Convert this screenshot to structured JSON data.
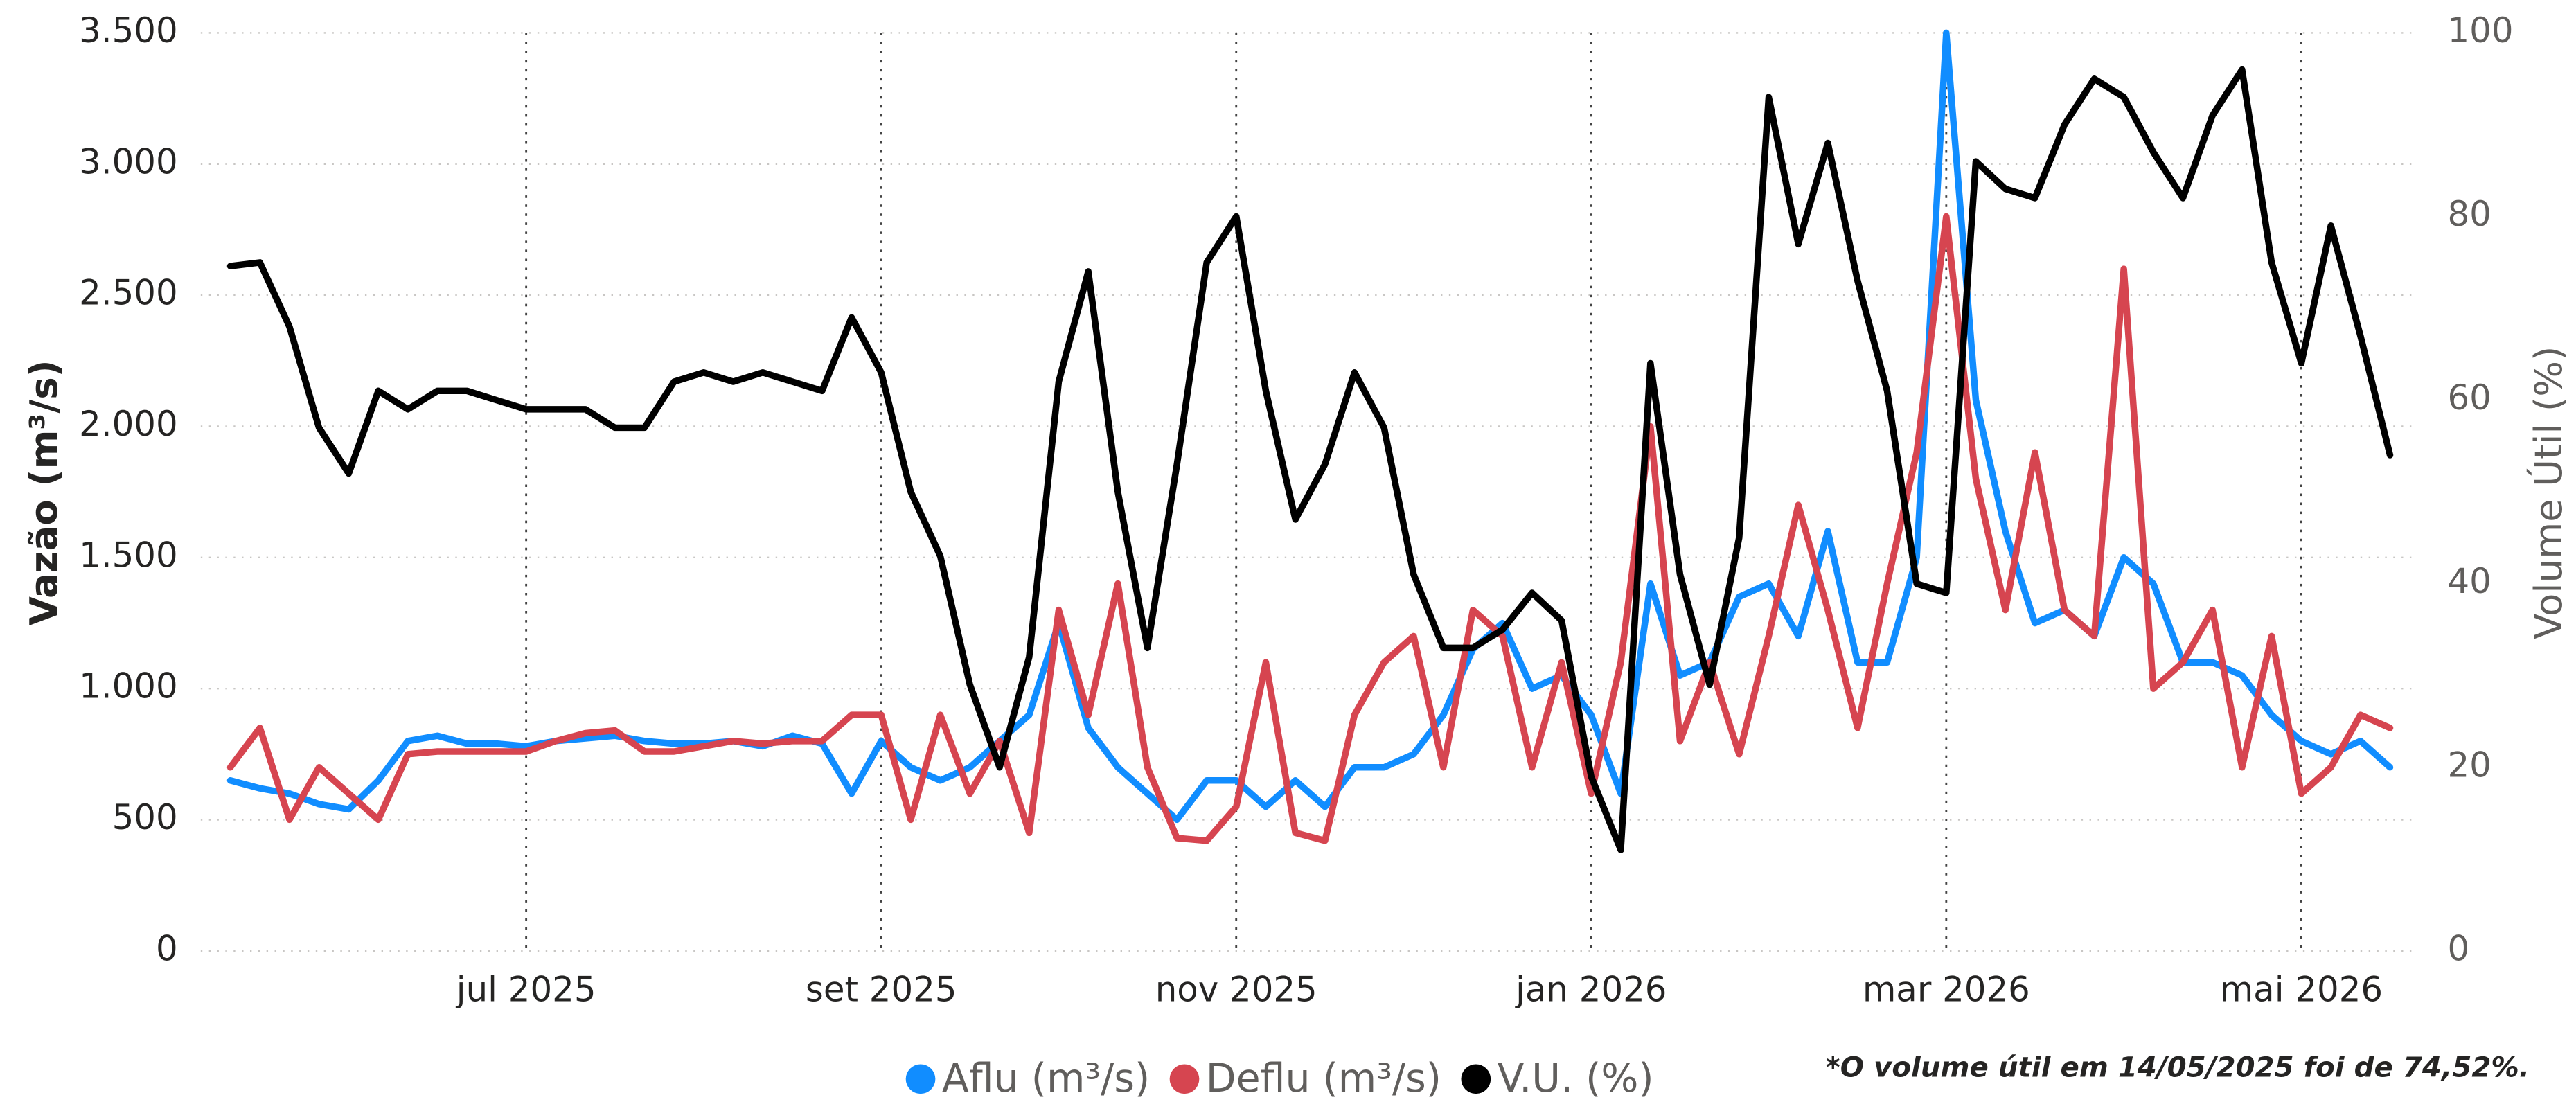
{
  "chart_data": {
    "type": "line",
    "y_label": "Vazão (m³/s)",
    "y2_label": "Volume Útil (%)",
    "note": "*O volume útil em 14/05/2025 foi de 74,52%.",
    "categories": [
      null,
      null,
      null,
      null,
      null,
      null,
      null,
      null,
      null,
      null,
      "jul 2025",
      null,
      null,
      null,
      null,
      null,
      null,
      null,
      null,
      null,
      null,
      null,
      "set 2025",
      null,
      null,
      null,
      null,
      null,
      null,
      null,
      null,
      null,
      null,
      null,
      "nov 2025",
      null,
      null,
      null,
      null,
      null,
      null,
      null,
      null,
      null,
      null,
      null,
      "jan 2026",
      null,
      null,
      null,
      null,
      null,
      null,
      null,
      null,
      null,
      null,
      null,
      "mar 2026",
      null,
      null,
      null,
      null,
      null,
      null,
      null,
      null,
      null,
      null,
      null,
      "mai 2026",
      null,
      null,
      null
    ],
    "series": [
      {
        "name": "Aflu (m³/s)",
        "color": "#118dff",
        "axis": "y",
        "values": [
          650,
          620,
          600,
          560,
          540,
          650,
          800,
          820,
          790,
          790,
          780,
          800,
          810,
          820,
          800,
          790,
          790,
          800,
          780,
          820,
          790,
          600,
          800,
          700,
          650,
          700,
          800,
          900,
          1250,
          850,
          700,
          600,
          500,
          650,
          650,
          550,
          650,
          550,
          700,
          700,
          750,
          900,
          1150,
          1250,
          1000,
          1050,
          900,
          600,
          1400,
          1050,
          1100,
          1350,
          1400,
          1200,
          1600,
          1100,
          1100,
          1500,
          3500,
          2100,
          1600,
          1250,
          1300,
          1200,
          1500,
          1400,
          1100,
          1100,
          1050,
          900,
          800,
          750,
          800,
          700
        ]
      },
      {
        "name": "Deflu (m³/s)",
        "color": "#d64550",
        "axis": "y",
        "values": [
          700,
          850,
          500,
          700,
          600,
          500,
          750,
          760,
          760,
          760,
          760,
          800,
          830,
          840,
          760,
          760,
          780,
          800,
          790,
          800,
          800,
          900,
          900,
          500,
          900,
          600,
          800,
          450,
          1300,
          900,
          1400,
          700,
          430,
          420,
          550,
          1100,
          450,
          420,
          900,
          1100,
          1200,
          700,
          1300,
          1200,
          700,
          1100,
          600,
          1100,
          2000,
          800,
          1100,
          750,
          1200,
          1700,
          1300,
          850,
          1400,
          1900,
          2800,
          1800,
          1300,
          1900,
          1300,
          1200,
          2600,
          1000,
          1100,
          1300,
          700,
          1200,
          600,
          700,
          900,
          850
        ]
      },
      {
        "name": "V.U. (%)",
        "color": "#000000",
        "axis": "y2",
        "values": [
          74.6,
          75,
          68,
          57,
          52,
          61,
          59,
          61,
          61,
          60,
          59,
          59,
          59,
          57,
          57,
          62,
          63,
          62,
          63,
          62,
          61,
          69,
          63,
          50,
          43,
          29,
          20,
          32,
          62,
          74,
          50,
          33,
          53,
          75,
          80,
          61,
          47,
          53,
          63,
          57,
          41,
          33,
          33,
          35,
          39,
          36,
          19,
          11,
          64,
          41,
          29,
          45,
          93,
          77,
          88,
          73,
          61,
          40,
          39,
          86,
          83,
          82,
          90,
          95,
          93,
          87,
          82,
          91,
          96,
          75,
          64,
          79,
          67,
          54
        ]
      }
    ],
    "ylim": [
      0,
      3500
    ],
    "yticks": [
      0,
      500,
      {
        "value": 1000,
        "label": "1.000"
      },
      {
        "value": 1500,
        "label": "1.500"
      },
      {
        "value": 2000,
        "label": "2.000"
      },
      {
        "value": 2500,
        "label": "2.500"
      },
      {
        "value": 3000,
        "label": "3.000"
      },
      {
        "value": 3500,
        "label": "3.500"
      }
    ],
    "y2lim": [
      0,
      100
    ],
    "y2ticks": [
      0,
      20,
      40,
      60,
      80,
      100
    ],
    "grid": true,
    "legend": "bottom"
  }
}
